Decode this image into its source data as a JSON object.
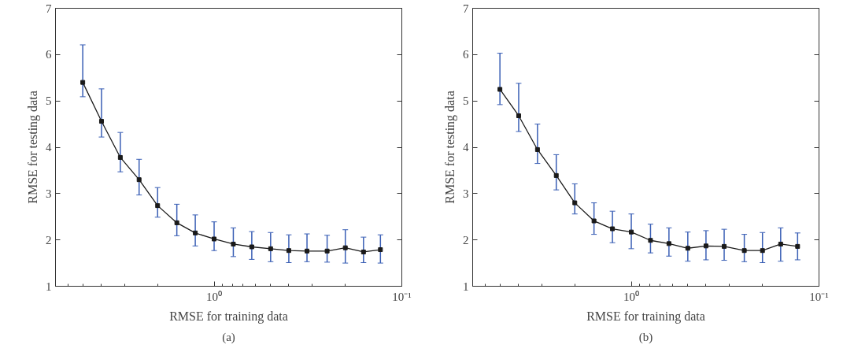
{
  "chart_data": [
    {
      "type": "line",
      "xlabel": "RMSE for training data",
      "ylabel": "RMSE for testing data",
      "log": "x",
      "marker": "square",
      "line_style": "solid",
      "xlim": [
        7,
        0.1
      ],
      "xticks": [
        {
          "value": 6,
          "label": null
        },
        {
          "value": 5,
          "label": null
        },
        {
          "value": 4,
          "label": null
        },
        {
          "value": 3,
          "label": null
        },
        {
          "value": 2,
          "label": null
        },
        {
          "value": 1,
          "label": "10⁰"
        },
        {
          "value": 0.9,
          "label": null
        },
        {
          "value": 0.8,
          "label": null
        },
        {
          "value": 0.7,
          "label": null
        },
        {
          "value": 0.6,
          "label": null
        },
        {
          "value": 0.5,
          "label": null
        },
        {
          "value": 0.4,
          "label": null
        },
        {
          "value": 0.3,
          "label": null
        },
        {
          "value": 0.2,
          "label": null
        },
        {
          "value": 0.1,
          "label": "10⁻¹"
        }
      ],
      "ylim": [
        1,
        7
      ],
      "yticks": [
        1,
        2,
        3,
        4,
        5,
        6,
        7
      ],
      "x": [
        5.01,
        3.98,
        3.16,
        2.51,
        2.0,
        1.58,
        1.26,
        1.0,
        0.79,
        0.63,
        0.5,
        0.4,
        0.32,
        0.25,
        0.2,
        0.16,
        0.13
      ],
      "series": [
        {
          "color": "#1a1a1a",
          "values": [
            5.4,
            4.56,
            3.78,
            3.3,
            2.74,
            2.37,
            2.15,
            2.02,
            1.91,
            1.85,
            1.81,
            1.77,
            1.76,
            1.76,
            1.83,
            1.74,
            1.79
          ],
          "errors": [
            [
              5.09,
              6.21
            ],
            [
              4.22,
              5.26
            ],
            [
              3.47,
              4.32
            ],
            [
              2.97,
              3.74
            ],
            [
              2.49,
              3.13
            ],
            [
              2.09,
              2.77
            ],
            [
              1.87,
              2.54
            ],
            [
              1.77,
              2.39
            ],
            [
              1.64,
              2.26
            ],
            [
              1.58,
              2.18
            ],
            [
              1.53,
              2.16
            ],
            [
              1.51,
              2.11
            ],
            [
              1.53,
              2.13
            ],
            [
              1.52,
              2.1
            ],
            [
              1.5,
              2.22
            ],
            [
              1.51,
              2.06
            ],
            [
              1.5,
              2.11
            ]
          ]
        }
      ],
      "annotations": [
        "(a)"
      ]
    },
    {
      "type": "line",
      "xlabel": "RMSE for training data",
      "ylabel": "RMSE for testing data",
      "log": "x",
      "marker": "square",
      "line_style": "solid",
      "xlim": [
        7,
        0.1
      ],
      "xticks": [
        {
          "value": 6,
          "label": null
        },
        {
          "value": 5,
          "label": null
        },
        {
          "value": 4,
          "label": null
        },
        {
          "value": 3,
          "label": null
        },
        {
          "value": 2,
          "label": null
        },
        {
          "value": 1,
          "label": "10⁰"
        },
        {
          "value": 0.9,
          "label": null
        },
        {
          "value": 0.8,
          "label": null
        },
        {
          "value": 0.7,
          "label": null
        },
        {
          "value": 0.6,
          "label": null
        },
        {
          "value": 0.5,
          "label": null
        },
        {
          "value": 0.4,
          "label": null
        },
        {
          "value": 0.3,
          "label": null
        },
        {
          "value": 0.2,
          "label": null
        },
        {
          "value": 0.1,
          "label": "10⁻¹"
        }
      ],
      "ylim": [
        1,
        7
      ],
      "yticks": [
        1,
        2,
        3,
        4,
        5,
        6,
        7
      ],
      "x": [
        5.01,
        3.98,
        3.16,
        2.51,
        2.0,
        1.58,
        1.26,
        1.0,
        0.79,
        0.63,
        0.5,
        0.4,
        0.32,
        0.25,
        0.2,
        0.16,
        0.13
      ],
      "series": [
        {
          "color": "#1a1a1a",
          "values": [
            5.25,
            4.68,
            3.95,
            3.39,
            2.8,
            2.41,
            2.24,
            2.17,
            1.99,
            1.92,
            1.82,
            1.87,
            1.86,
            1.77,
            1.77,
            1.91,
            1.86
          ],
          "errors": [
            [
              4.92,
              6.03
            ],
            [
              4.34,
              5.38
            ],
            [
              3.65,
              4.5
            ],
            [
              3.08,
              3.84
            ],
            [
              2.56,
              3.21
            ],
            [
              2.12,
              2.8
            ],
            [
              1.94,
              2.62
            ],
            [
              1.81,
              2.56
            ],
            [
              1.72,
              2.34
            ],
            [
              1.65,
              2.26
            ],
            [
              1.54,
              2.17
            ],
            [
              1.57,
              2.2
            ],
            [
              1.56,
              2.23
            ],
            [
              1.53,
              2.12
            ],
            [
              1.51,
              2.16
            ],
            [
              1.54,
              2.26
            ],
            [
              1.57,
              2.15
            ]
          ]
        }
      ],
      "annotations": [
        "(b)"
      ]
    }
  ]
}
